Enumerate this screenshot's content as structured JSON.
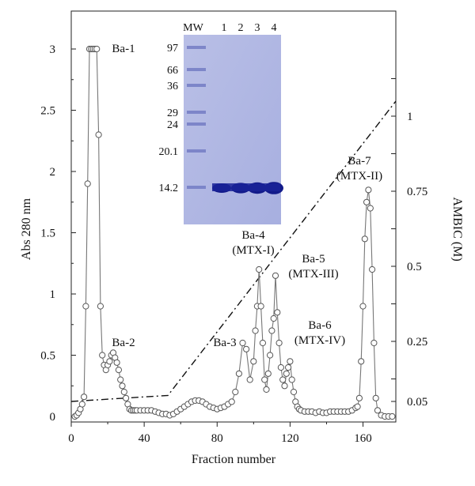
{
  "chart_data": {
    "type": "line",
    "xlabel": "Fraction number",
    "ylabel_left": "Abs 280 nm",
    "ylabel_right": "AMBIC (M)",
    "xlim": [
      0,
      178
    ],
    "ylim_left": [
      0,
      3.2
    ],
    "ylim_right": [
      0,
      1.375
    ],
    "x_ticks": [
      "0",
      "40",
      "80",
      "120",
      "160"
    ],
    "y_left_ticks": [
      "0",
      "0.5",
      "1",
      "1.5",
      "2",
      "2.5",
      "3"
    ],
    "y_right_ticks": [
      "0.05",
      "0.25",
      "0.5",
      "0.75",
      "1"
    ],
    "series": [
      {
        "kind": "absorbance",
        "x": [
          2,
          3,
          4,
          5,
          6,
          7,
          8,
          9,
          10,
          11,
          12,
          13,
          14,
          15,
          16,
          17,
          18,
          19,
          20,
          21,
          22,
          23,
          24,
          25,
          26,
          27,
          28,
          29,
          30,
          31,
          32,
          33,
          34,
          35,
          36,
          38,
          40,
          42,
          44,
          46,
          48,
          50,
          52,
          54,
          56,
          58,
          60,
          62,
          64,
          66,
          68,
          70,
          72,
          74,
          76,
          78,
          80,
          82,
          84,
          86,
          88,
          90,
          92,
          94,
          96,
          98,
          100,
          101,
          102,
          103,
          104,
          105,
          106,
          107,
          108,
          109,
          110,
          111,
          112,
          113,
          114,
          115,
          116,
          117,
          118,
          119,
          120,
          121,
          122,
          123,
          124,
          125,
          126,
          128,
          130,
          132,
          134,
          136,
          138,
          140,
          142,
          144,
          146,
          148,
          150,
          152,
          154,
          156,
          157,
          158,
          159,
          160,
          161,
          162,
          163,
          164,
          165,
          166,
          167,
          168,
          170,
          172,
          174,
          176
        ],
        "values": [
          0,
          0.01,
          0.03,
          0.06,
          0.1,
          0.16,
          0.9,
          1.9,
          3.0,
          3.0,
          3.0,
          3.0,
          3.0,
          2.3,
          0.9,
          0.5,
          0.42,
          0.38,
          0.42,
          0.45,
          0.5,
          0.52,
          0.48,
          0.44,
          0.38,
          0.3,
          0.25,
          0.2,
          0.15,
          0.1,
          0.06,
          0.05,
          0.05,
          0.05,
          0.05,
          0.05,
          0.05,
          0.05,
          0.05,
          0.04,
          0.03,
          0.02,
          0.02,
          0.01,
          0.02,
          0.04,
          0.06,
          0.08,
          0.1,
          0.12,
          0.13,
          0.13,
          0.12,
          0.1,
          0.08,
          0.07,
          0.06,
          0.07,
          0.08,
          0.1,
          0.12,
          0.2,
          0.35,
          0.6,
          0.55,
          0.3,
          0.45,
          0.7,
          0.9,
          1.2,
          0.9,
          0.6,
          0.3,
          0.22,
          0.35,
          0.5,
          0.7,
          0.8,
          1.15,
          0.85,
          0.6,
          0.4,
          0.3,
          0.25,
          0.35,
          0.4,
          0.45,
          0.3,
          0.2,
          0.12,
          0.08,
          0.06,
          0.05,
          0.04,
          0.04,
          0.04,
          0.03,
          0.04,
          0.03,
          0.03,
          0.04,
          0.04,
          0.04,
          0.04,
          0.04,
          0.04,
          0.05,
          0.07,
          0.08,
          0.15,
          0.45,
          0.9,
          1.45,
          1.75,
          1.85,
          1.7,
          1.2,
          0.6,
          0.15,
          0.05,
          0.01,
          0.0,
          0.0,
          0.0
        ]
      },
      {
        "kind": "gradient",
        "x": [
          0,
          53,
          178
        ],
        "values": [
          0.05,
          0.07,
          1.05
        ]
      }
    ],
    "peak_labels": [
      {
        "text": "Ba-1",
        "x": 13,
        "y": 3.0
      },
      {
        "text": "Ba-2",
        "x": 21,
        "y": 0.6
      },
      {
        "text": "Ba-3",
        "x": 92,
        "y": 0.6
      },
      {
        "text": "Ba-4",
        "text2": "(MTX-I)",
        "x": 106,
        "y": 1.22
      },
      {
        "text": "Ba-5",
        "text2": "(MTX-III)",
        "x": 116,
        "y": 1.16
      },
      {
        "text": "Ba-6",
        "text2": "(MTX-IV)",
        "x": 124,
        "y": 0.45
      },
      {
        "text": "Ba-7",
        "text2": "(MTX-II)",
        "x": 162,
        "y": 1.85
      }
    ],
    "inset_gel": {
      "marker_header": "MW",
      "lanes": [
        "1",
        "2",
        "3",
        "4"
      ],
      "marker_sizes": [
        "97",
        "66",
        "36",
        "29",
        "24",
        "20.1",
        "14.2"
      ]
    }
  }
}
